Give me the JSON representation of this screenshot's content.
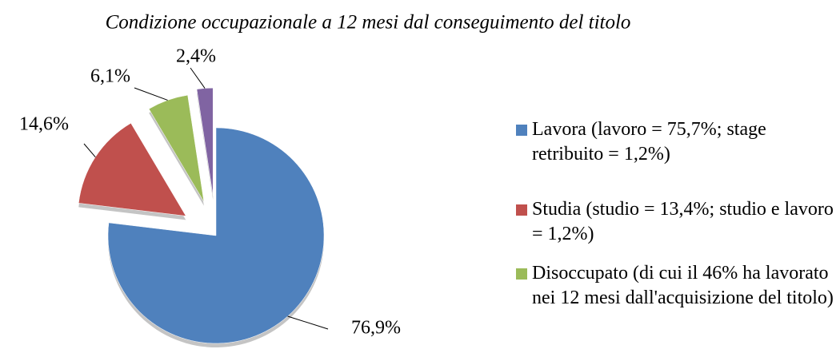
{
  "chart_data": {
    "type": "pie",
    "title": "Condizione occupazionale a 12 mesi dal conseguimento del titolo",
    "categories": [
      "Lavora (lavoro = 75,7%; stage retribuito = 1,2%)",
      "Studia (studio = 13,4%; studio e lavoro = 1,2%)",
      "Disoccupato (di cui il 46% ha lavorato nei 12 mesi dall'acquisizione del titolo)",
      null
    ],
    "values": [
      76.9,
      14.6,
      6.1,
      2.4
    ],
    "value_labels": [
      "76,9%",
      "14,6%",
      "6,1%",
      "2,4%"
    ],
    "colors": [
      "#4f81bd",
      "#c0504d",
      "#9bbb59",
      "#8064a2"
    ],
    "legend": "right"
  }
}
